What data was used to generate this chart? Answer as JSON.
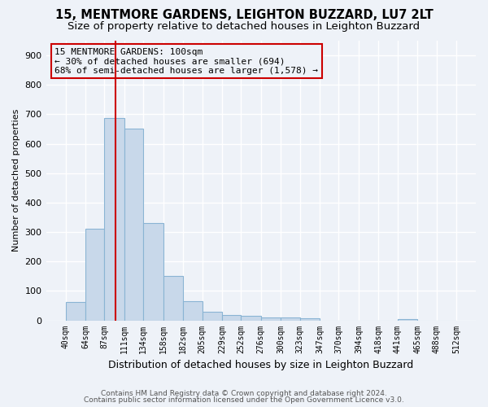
{
  "title1": "15, MENTMORE GARDENS, LEIGHTON BUZZARD, LU7 2LT",
  "title2": "Size of property relative to detached houses in Leighton Buzzard",
  "xlabel": "Distribution of detached houses by size in Leighton Buzzard",
  "ylabel": "Number of detached properties",
  "bin_edges": [
    40,
    64,
    87,
    111,
    134,
    158,
    182,
    205,
    229,
    252,
    276,
    300,
    323,
    347,
    370,
    394,
    418,
    441,
    465,
    488,
    512
  ],
  "bar_heights": [
    62,
    310,
    688,
    652,
    330,
    150,
    65,
    30,
    18,
    14,
    10,
    10,
    8,
    0,
    0,
    0,
    0,
    5,
    0,
    0
  ],
  "bar_color": "#c8d8ea",
  "bar_edge_color": "#8ab4d4",
  "vline_x": 100,
  "vline_color": "#cc0000",
  "annotation_line1": "15 MENTMORE GARDENS: 100sqm",
  "annotation_line2": "← 30% of detached houses are smaller (694)",
  "annotation_line3": "68% of semi-detached houses are larger (1,578) →",
  "annotation_fontsize": 8,
  "footer1": "Contains HM Land Registry data © Crown copyright and database right 2024.",
  "footer2": "Contains public sector information licensed under the Open Government Licence v3.0.",
  "ylim": [
    0,
    950
  ],
  "yticks": [
    0,
    100,
    200,
    300,
    400,
    500,
    600,
    700,
    800,
    900
  ],
  "bg_color": "#eef2f8",
  "grid_color": "#ffffff",
  "title1_fontsize": 10.5,
  "title2_fontsize": 9.5,
  "footer_fontsize": 6.5
}
